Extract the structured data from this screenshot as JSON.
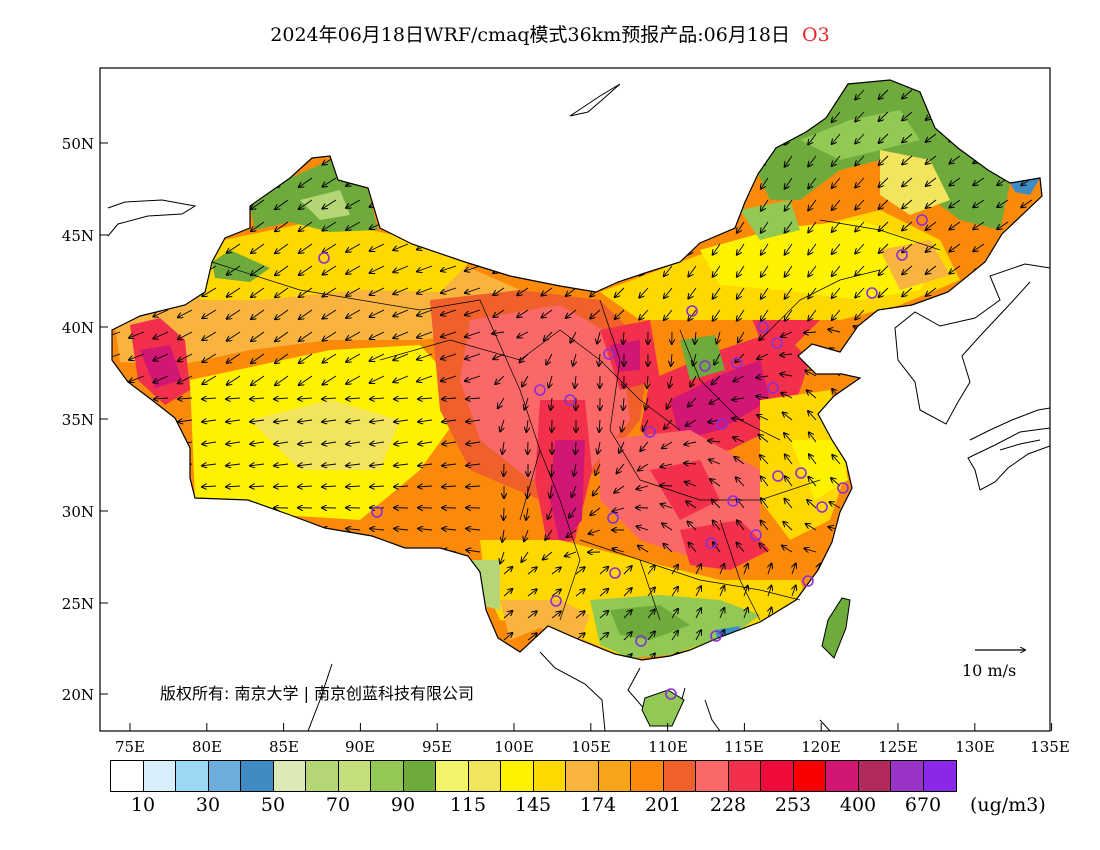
{
  "title": {
    "text": "2024年06月18日WRF/cmaq模式36km预报产品:06月18日",
    "species": "O3",
    "species_color": "#e8262a"
  },
  "map": {
    "latitude_labels": [
      "50N",
      "45N",
      "40N",
      "35N",
      "30N",
      "25N",
      "20N"
    ],
    "longitude_labels": [
      "75E",
      "80E",
      "85E",
      "90E",
      "95E",
      "100E",
      "105E",
      "110E",
      "115E",
      "120E",
      "125E",
      "130E",
      "135E"
    ],
    "copyright": "版权所有: 南京大学 | 南京创蓝科技有限公司",
    "wind_reference_label": "10 m/s",
    "station_marker_color": "#8b2fd6"
  },
  "legend": {
    "colors": [
      "#ffffff",
      "#d6effb",
      "#9fd8f5",
      "#6baedb",
      "#3f8cc4",
      "#dbeab6",
      "#b5d675",
      "#c3df7c",
      "#91c954",
      "#6fab3c",
      "#f2f56a",
      "#f2e45c",
      "#fff200",
      "#ffd800",
      "#f9b440",
      "#faa31c",
      "#fb8a0a",
      "#f0602a",
      "#fb6868",
      "#f3304c",
      "#ee0a3a",
      "#fb0000",
      "#d21674",
      "#b02a5e",
      "#9b33c9",
      "#8a28e8"
    ],
    "tick_labels": [
      "10",
      "30",
      "50",
      "70",
      "90",
      "115",
      "145",
      "174",
      "201",
      "228",
      "253",
      "400",
      "670"
    ],
    "unit": "(ug/m3)"
  }
}
